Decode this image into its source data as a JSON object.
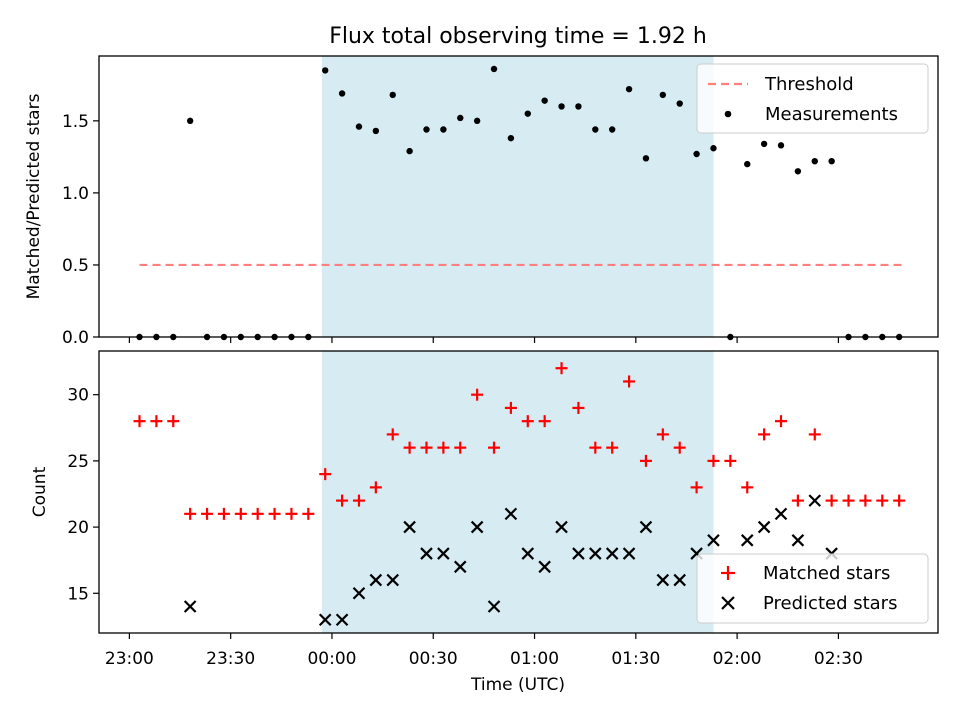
{
  "chart_data": [
    {
      "type": "scatter",
      "title": "Flux total observing time = 1.92 h",
      "xlabel": "",
      "ylabel": "Matched/Predicted stars",
      "ylim": [
        0,
        1.95
      ],
      "yticks": [
        "0.0",
        "0.5",
        "1.0",
        "1.5"
      ],
      "grid": false,
      "legend_position": "top-right",
      "shaded_interval_minutes": [
        -3,
        113
      ],
      "threshold": {
        "name": "Threshold",
        "value": 0.5,
        "x_range_minutes": [
          -57,
          170
        ],
        "color": "#ff7f7f",
        "style": "dashed"
      },
      "series": [
        {
          "name": "Measurements",
          "color": "#000000",
          "marker": "dot",
          "points": [
            [
              -57,
              0.0
            ],
            [
              -52,
              0.0
            ],
            [
              -47,
              0.0
            ],
            [
              -42,
              1.5
            ],
            [
              -37,
              0.0
            ],
            [
              -32,
              0.0
            ],
            [
              -27,
              0.0
            ],
            [
              -22,
              0.0
            ],
            [
              -17,
              0.0
            ],
            [
              -12,
              0.0
            ],
            [
              -7,
              0.0
            ],
            [
              -2,
              1.85
            ],
            [
              3,
              1.69
            ],
            [
              8,
              1.46
            ],
            [
              13,
              1.43
            ],
            [
              18,
              1.68
            ],
            [
              23,
              1.29
            ],
            [
              28,
              1.44
            ],
            [
              33,
              1.44
            ],
            [
              38,
              1.52
            ],
            [
              43,
              1.5
            ],
            [
              48,
              1.86
            ],
            [
              53,
              1.38
            ],
            [
              58,
              1.55
            ],
            [
              63,
              1.64
            ],
            [
              68,
              1.6
            ],
            [
              73,
              1.6
            ],
            [
              78,
              1.44
            ],
            [
              83,
              1.44
            ],
            [
              88,
              1.72
            ],
            [
              93,
              1.24
            ],
            [
              98,
              1.68
            ],
            [
              103,
              1.62
            ],
            [
              108,
              1.27
            ],
            [
              113,
              1.31
            ],
            [
              118,
              0.0
            ],
            [
              123,
              1.2
            ],
            [
              128,
              1.34
            ],
            [
              133,
              1.33
            ],
            [
              138,
              1.15
            ],
            [
              143,
              1.22
            ],
            [
              148,
              1.22
            ],
            [
              153,
              0.0
            ],
            [
              158,
              0.0
            ],
            [
              163,
              0.0
            ],
            [
              168,
              0.0
            ]
          ]
        }
      ]
    },
    {
      "type": "scatter",
      "title": "",
      "xlabel": "Time (UTC)",
      "ylabel": "Count",
      "ylim": [
        12,
        33.3
      ],
      "yticks": [
        "15",
        "20",
        "25",
        "30"
      ],
      "xticks": [
        "23:00",
        "23:30",
        "00:00",
        "00:30",
        "01:00",
        "01:30",
        "02:00",
        "02:30"
      ],
      "xtick_minutes": [
        -60,
        -30,
        0,
        30,
        60,
        90,
        120,
        150
      ],
      "xlim_minutes": [
        -69,
        179.5
      ],
      "grid": false,
      "legend_position": "bottom-right",
      "shaded_interval_minutes": [
        -3,
        113
      ],
      "series": [
        {
          "name": "Matched stars",
          "color": "#ff0000",
          "marker": "plus",
          "points": [
            [
              -57,
              28
            ],
            [
              -52,
              28
            ],
            [
              -47,
              28
            ],
            [
              -42,
              21
            ],
            [
              -37,
              21
            ],
            [
              -32,
              21
            ],
            [
              -27,
              21
            ],
            [
              -22,
              21
            ],
            [
              -17,
              21
            ],
            [
              -12,
              21
            ],
            [
              -7,
              21
            ],
            [
              -2,
              24
            ],
            [
              3,
              22
            ],
            [
              8,
              22
            ],
            [
              13,
              23
            ],
            [
              18,
              27
            ],
            [
              23,
              26
            ],
            [
              28,
              26
            ],
            [
              33,
              26
            ],
            [
              38,
              26
            ],
            [
              43,
              30
            ],
            [
              48,
              26
            ],
            [
              53,
              29
            ],
            [
              58,
              28
            ],
            [
              63,
              28
            ],
            [
              68,
              32
            ],
            [
              73,
              29
            ],
            [
              78,
              26
            ],
            [
              83,
              26
            ],
            [
              88,
              31
            ],
            [
              93,
              25
            ],
            [
              98,
              27
            ],
            [
              103,
              26
            ],
            [
              108,
              23
            ],
            [
              113,
              25
            ],
            [
              118,
              25
            ],
            [
              123,
              23
            ],
            [
              128,
              27
            ],
            [
              133,
              28
            ],
            [
              138,
              22
            ],
            [
              143,
              27
            ],
            [
              148,
              22
            ],
            [
              153,
              22
            ],
            [
              158,
              22
            ],
            [
              163,
              22
            ],
            [
              168,
              22
            ]
          ]
        },
        {
          "name": "Predicted stars",
          "color": "#000000",
          "marker": "x",
          "points": [
            [
              -42,
              14
            ],
            [
              -2,
              13
            ],
            [
              3,
              13
            ],
            [
              8,
              15
            ],
            [
              13,
              16
            ],
            [
              18,
              16
            ],
            [
              23,
              20
            ],
            [
              28,
              18
            ],
            [
              33,
              18
            ],
            [
              38,
              17
            ],
            [
              43,
              20
            ],
            [
              48,
              14
            ],
            [
              53,
              21
            ],
            [
              58,
              18
            ],
            [
              63,
              17
            ],
            [
              68,
              20
            ],
            [
              73,
              18
            ],
            [
              78,
              18
            ],
            [
              83,
              18
            ],
            [
              88,
              18
            ],
            [
              93,
              20
            ],
            [
              98,
              16
            ],
            [
              103,
              16
            ],
            [
              108,
              18
            ],
            [
              113,
              19
            ],
            [
              123,
              19
            ],
            [
              128,
              20
            ],
            [
              133,
              21
            ],
            [
              138,
              19
            ],
            [
              143,
              22
            ],
            [
              148,
              18
            ]
          ]
        }
      ]
    }
  ],
  "colors": {
    "shade": "#add8e6",
    "shade_opacity": 0.5,
    "threshold": "#ff7f7f",
    "matched": "#ff0000",
    "predicted": "#000000"
  }
}
